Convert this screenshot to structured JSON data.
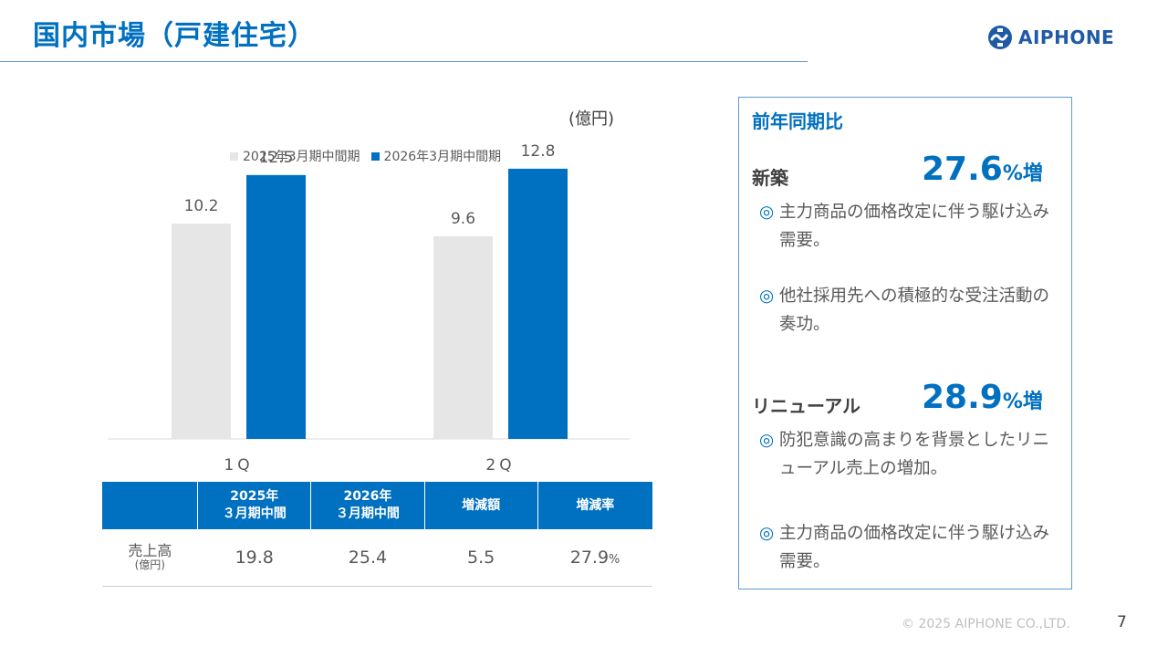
{
  "header": {
    "title": "国内市場（戸建住宅）",
    "logo_text": "AIPHONE"
  },
  "chart_data": {
    "type": "bar",
    "unit_label": "(億円)",
    "categories": [
      "1Q",
      "2Q"
    ],
    "series": [
      {
        "name": "2025年3月期中間期",
        "values": [
          10.2,
          9.6
        ],
        "color": "#e6e6e6"
      },
      {
        "name": "2026年3月期中間期",
        "values": [
          12.5,
          12.8
        ],
        "color": "#0070c0"
      }
    ],
    "data_labels": [
      [
        "10.2",
        "9.6"
      ],
      [
        "12.5",
        "12.8"
      ]
    ],
    "ylim": [
      0,
      15
    ],
    "grid": false,
    "legend": "top"
  },
  "table": {
    "headers": [
      "",
      "2025年\n３月期中間",
      "2026年\n３月期中間",
      "増減額",
      "増減率"
    ],
    "row_label": "売上高",
    "row_unit": "(億円)",
    "values": [
      "19.8",
      "25.4",
      "5.5",
      "27.9"
    ],
    "pct_suffix": "%"
  },
  "summary": {
    "title": "前年同期比",
    "segments": [
      {
        "label": "新築",
        "value": "27.6",
        "suffix": "%増",
        "bullets": [
          "主力商品の価格改定に伴う駆け込み需要。",
          "他社採用先への積極的な受注活動の奏功。"
        ]
      },
      {
        "label": "リニューアル",
        "value": "28.9",
        "suffix": "%増",
        "bullets": [
          "防犯意識の高まりを背景としたリニューアル売上の増加。",
          "主力商品の価格改定に伴う駆け込み需要。"
        ]
      }
    ],
    "bullet_mark": "◎"
  },
  "footer": {
    "copyright": "© 2025 AIPHONE CO.,LTD.",
    "page": "7"
  }
}
